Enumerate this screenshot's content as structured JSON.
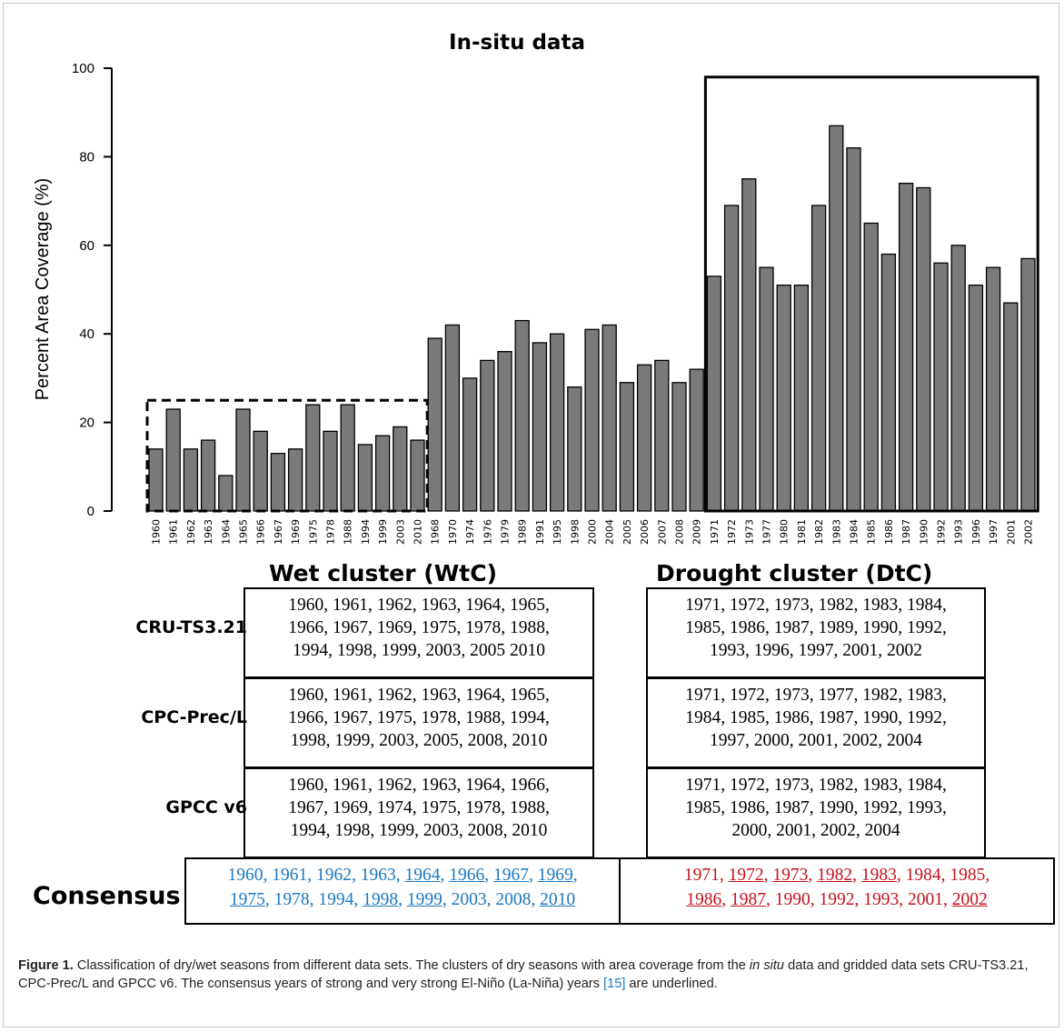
{
  "chart_data": {
    "type": "bar",
    "title": "In-situ data",
    "ylabel": "Percent Area Coverage (%)",
    "ylim": [
      0,
      100
    ],
    "yticks": [
      0,
      20,
      40,
      60,
      80,
      100
    ],
    "categories": [
      "1960",
      "1961",
      "1962",
      "1963",
      "1964",
      "1965",
      "1966",
      "1967",
      "1969",
      "1975",
      "1978",
      "1988",
      "1994",
      "1999",
      "2003",
      "2010",
      "1968",
      "1970",
      "1974",
      "1976",
      "1979",
      "1989",
      "1991",
      "1995",
      "1998",
      "2000",
      "2004",
      "2005",
      "2006",
      "2007",
      "2008",
      "2009",
      "1971",
      "1972",
      "1973",
      "1977",
      "1980",
      "1981",
      "1982",
      "1983",
      "1984",
      "1985",
      "1986",
      "1987",
      "1990",
      "1992",
      "1993",
      "1996",
      "1997",
      "2001",
      "2002"
    ],
    "values": [
      14,
      23,
      14,
      16,
      8,
      23,
      18,
      13,
      14,
      24,
      18,
      24,
      15,
      17,
      19,
      16,
      39,
      42,
      30,
      34,
      36,
      43,
      38,
      40,
      28,
      41,
      42,
      29,
      33,
      34,
      29,
      32,
      53,
      69,
      75,
      55,
      51,
      51,
      69,
      87,
      82,
      65,
      58,
      74,
      73,
      56,
      60,
      51,
      55,
      47,
      57
    ],
    "bar_color": "#7a7a7a",
    "highlight_boxes": [
      {
        "label": "wet cluster",
        "style": "dashed",
        "from_index": 0,
        "to_index": 15,
        "top_value": 25
      },
      {
        "label": "drought cluster",
        "style": "solid",
        "from_index": 32,
        "to_index": 50,
        "top_value": 98
      }
    ]
  },
  "table": {
    "wet_header": "Wet cluster (WtC)",
    "dry_header": "Drought cluster (DtC)",
    "rows": [
      {
        "label": "CRU-TS3.21",
        "wet_lines": [
          "1960, 1961, 1962, 1963, 1964, 1965,",
          "1966, 1967, 1969, 1975, 1978, 1988,",
          "1994, 1998, 1999, 2003, 2005 2010"
        ],
        "dry_lines": [
          "1971, 1972, 1973, 1982, 1983, 1984,",
          "1985, 1986, 1987, 1989, 1990, 1992,",
          "1993, 1996, 1997, 2001, 2002"
        ]
      },
      {
        "label": "CPC-Prec/L",
        "wet_lines": [
          "1960, 1961, 1962, 1963, 1964, 1965,",
          "1966, 1967, 1975, 1978, 1988, 1994,",
          "1998, 1999, 2003, 2005, 2008, 2010"
        ],
        "dry_lines": [
          "1971, 1972, 1973, 1977, 1982, 1983,",
          "1984, 1985, 1986, 1987, 1990, 1992,",
          "1997, 2000, 2001, 2002, 2004"
        ]
      },
      {
        "label": "GPCC v6",
        "wet_lines": [
          "1960, 1961, 1962, 1963, 1964, 1966,",
          "1967, 1969, 1974, 1975, 1978, 1988,",
          "1994, 1998, 1999, 2003, 2008, 2010"
        ],
        "dry_lines": [
          "1971, 1972, 1973, 1982, 1983, 1984,",
          "1985, 1986, 1987, 1990, 1992, 1993,",
          "2000, 2001, 2002, 2004"
        ]
      }
    ],
    "consensus_label": "Consensus",
    "consensus_wet": [
      [
        {
          "t": "1960, 1961, 1962, 1963, ",
          "u": false
        },
        {
          "t": "1964",
          "u": true
        },
        {
          "t": ", ",
          "u": false
        },
        {
          "t": "1966",
          "u": true
        },
        {
          "t": ", ",
          "u": false
        },
        {
          "t": "1967",
          "u": true
        },
        {
          "t": ", ",
          "u": false
        },
        {
          "t": "1969",
          "u": true
        },
        {
          "t": ",",
          "u": false
        }
      ],
      [
        {
          "t": "1975",
          "u": true
        },
        {
          "t": ", 1978, 1994, ",
          "u": false
        },
        {
          "t": "1998",
          "u": true
        },
        {
          "t": ", ",
          "u": false
        },
        {
          "t": "1999",
          "u": true
        },
        {
          "t": ", 2003, 2008, ",
          "u": false
        },
        {
          "t": "2010",
          "u": true
        }
      ]
    ],
    "consensus_dry": [
      [
        {
          "t": "1971, ",
          "u": false
        },
        {
          "t": "1972",
          "u": true
        },
        {
          "t": ", ",
          "u": false
        },
        {
          "t": "1973",
          "u": true
        },
        {
          "t": ", ",
          "u": false
        },
        {
          "t": "1982",
          "u": true
        },
        {
          "t": ", ",
          "u": false
        },
        {
          "t": "1983",
          "u": true
        },
        {
          "t": ", 1984, 1985,",
          "u": false
        }
      ],
      [
        {
          "t": "1986",
          "u": true
        },
        {
          "t": ", ",
          "u": false
        },
        {
          "t": "1987",
          "u": true
        },
        {
          "t": ", 1990, 1992, 1993, 2001, ",
          "u": false
        },
        {
          "t": "2002",
          "u": true
        }
      ]
    ],
    "wet_color": "#1a78c2",
    "dry_color": "#c4121c"
  },
  "caption": {
    "figure_label": "Figure 1.",
    "text_before_italic": " Classification of dry/wet seasons from different data sets. The clusters of dry seasons with area coverage from the ",
    "italic": "in situ",
    "text_after_italic": " data and gridded data sets CRU-TS3.21, CPC-Prec/L and GPCC v6. The consensus years of strong and very strong El-Niño (La-Niña) years ",
    "citation": "[15]",
    "text_end": " are underlined."
  }
}
